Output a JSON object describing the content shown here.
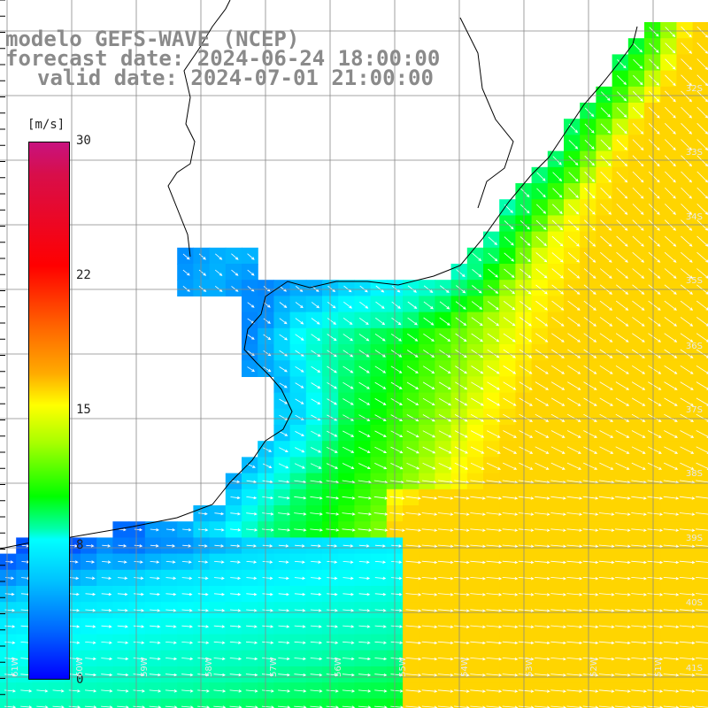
{
  "header": {
    "line1": "modelo GEFS-WAVE (NCEP)",
    "line2": "forecast date: 2024-06-24 18:00:00",
    "line3": "valid date: 2024-07-01 21:00:00"
  },
  "colorbar": {
    "unit": "m/s",
    "min": 0,
    "max": 30,
    "ticks": [
      "30",
      "22",
      "15",
      "8",
      "0"
    ]
  },
  "axes": {
    "lat_labels": [
      "32S",
      "33S",
      "34S",
      "35S",
      "36S",
      "37S",
      "38S",
      "39S",
      "40S",
      "41S"
    ],
    "lon_labels": [
      "61W",
      "60W",
      "59W",
      "58W",
      "57W",
      "56W",
      "55W",
      "54W",
      "53W",
      "52W",
      "51W"
    ]
  },
  "map": {
    "region": "Rio de la Plata / South Atlantic",
    "field": "wind speed and direction",
    "land_color": "#ffffff",
    "grid_color": "#888888",
    "arrow_color": "#ffffff"
  }
}
